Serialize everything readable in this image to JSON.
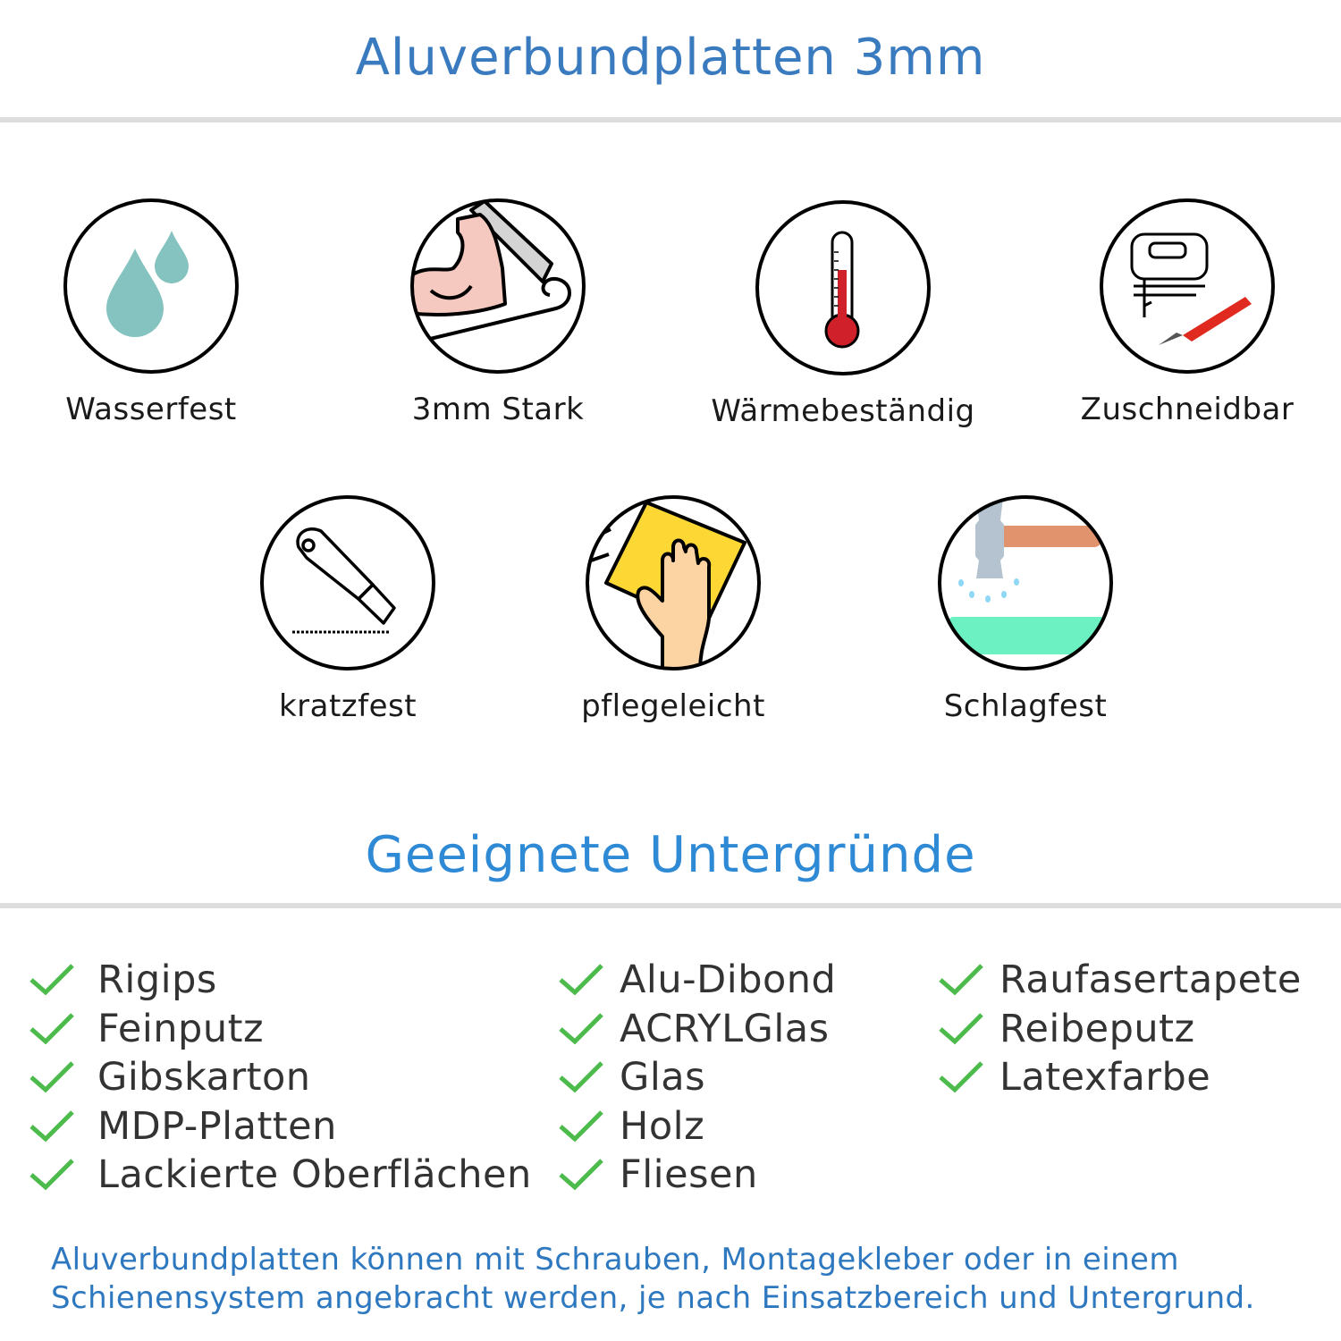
{
  "header": {
    "title": "Aluverbundplatten 3mm"
  },
  "features": [
    {
      "label": "Wasserfest",
      "icon": "water-drops-icon"
    },
    {
      "label": "3mm Stark",
      "icon": "strong-arm-icon"
    },
    {
      "label": "Wärmebeständig",
      "icon": "thermometer-icon"
    },
    {
      "label": "Zuschneidbar",
      "icon": "jigsaw-cutter-icon"
    },
    {
      "label": "kratzfest",
      "icon": "cutter-knife-icon"
    },
    {
      "label": "pflegeleicht",
      "icon": "cleaning-sponge-hand-icon"
    },
    {
      "label": "Schlagfest",
      "icon": "hammer-impact-icon"
    }
  ],
  "surfaces": {
    "title": "Geeignete Untergründe",
    "columns": [
      [
        "Rigips",
        "Feinputz",
        "Gibskarton",
        "MDP-Platten",
        "Lackierte Oberflächen"
      ],
      [
        "Alu-Dibond",
        "ACRYLGlas",
        "Glas",
        "Holz",
        "Fliesen"
      ],
      [
        "Raufasertapete",
        "Reibeputz",
        "Latexfarbe"
      ]
    ]
  },
  "note": {
    "line1": "Aluverbundplatten können mit Schrauben, Montagekleber oder in einem",
    "line2": "Schienensystem angebracht werden, je nach Einsatzbereich und Untergrund."
  },
  "colors": {
    "title": "#3a7bbf",
    "heading": "#2f8ad6",
    "check": "#4cbb4c",
    "note": "#2e78c0"
  }
}
